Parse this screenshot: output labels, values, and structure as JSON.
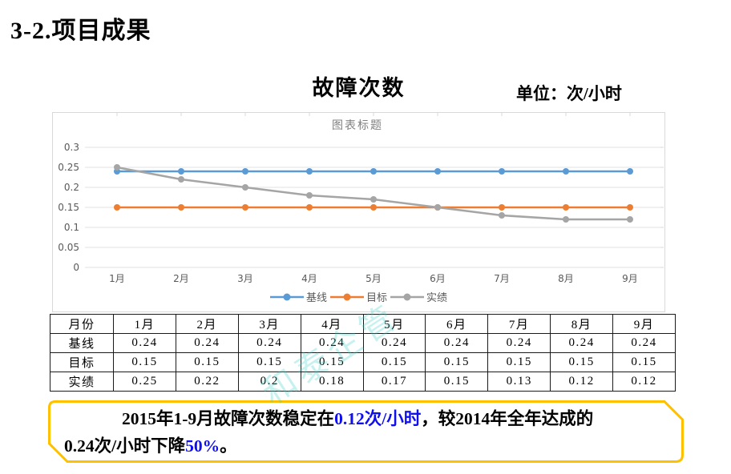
{
  "page": {
    "title": "3-2.项目成果"
  },
  "header": {
    "chart_title": "故障次数",
    "unit_label": "单位：次/小时"
  },
  "chart_data": {
    "type": "line",
    "title": "图表标题",
    "categories": [
      "1月",
      "2月",
      "3月",
      "4月",
      "5月",
      "6月",
      "7月",
      "8月",
      "9月"
    ],
    "series": [
      {
        "name": "基线",
        "color": "#5B9BD5",
        "values": [
          0.24,
          0.24,
          0.24,
          0.24,
          0.24,
          0.24,
          0.24,
          0.24,
          0.24
        ]
      },
      {
        "name": "目标",
        "color": "#ED7D31",
        "values": [
          0.15,
          0.15,
          0.15,
          0.15,
          0.15,
          0.15,
          0.15,
          0.15,
          0.15
        ]
      },
      {
        "name": "实绩",
        "color": "#A5A5A5",
        "values": [
          0.25,
          0.22,
          0.2,
          0.18,
          0.17,
          0.15,
          0.13,
          0.12,
          0.12
        ]
      }
    ],
    "ylim": [
      0,
      0.3
    ],
    "yticks": [
      0,
      0.05,
      0.1,
      0.15,
      0.2,
      0.25,
      0.3
    ],
    "grid": true,
    "legend_position": "bottom",
    "xlabel": "",
    "ylabel": ""
  },
  "table": {
    "header": [
      "月份",
      "1月",
      "2月",
      "3月",
      "4月",
      "5月",
      "6月",
      "7月",
      "8月",
      "9月"
    ],
    "rows": [
      [
        "基线",
        "0.24",
        "0.24",
        "0.24",
        "0.24",
        "0.24",
        "0.24",
        "0.24",
        "0.24",
        "0.24"
      ],
      [
        "目标",
        "0.15",
        "0.15",
        "0.15",
        "0.15",
        "0.15",
        "0.15",
        "0.15",
        "0.15",
        "0.15"
      ],
      [
        "实绩",
        "0.25",
        "0.22",
        "0.2",
        "0.18",
        "0.17",
        "0.15",
        "0.13",
        "0.12",
        "0.12"
      ]
    ]
  },
  "summary": {
    "line1": [
      {
        "t": "2015年1-9月故障次数稳定在",
        "hl": false
      },
      {
        "t": "0.12次/小时",
        "hl": true
      },
      {
        "t": "，较2014年全年达成的",
        "hl": false
      }
    ],
    "line2": [
      {
        "t": "0.24次/小时下降",
        "hl": false
      },
      {
        "t": "50%",
        "hl": true
      },
      {
        "t": "。",
        "hl": false
      }
    ]
  },
  "watermark": {
    "text": "和泰企管"
  },
  "colors": {
    "series_baseline": "#5B9BD5",
    "series_target": "#ED7D31",
    "series_actual": "#A5A5A5",
    "grid_line": "#e2e2e2",
    "axis_text": "#595959",
    "chart_inner_title": "#808080",
    "summary_highlight": "#0f0fee",
    "summary_box_border": "#FFC000",
    "panel_border": "#d9d9d9"
  }
}
